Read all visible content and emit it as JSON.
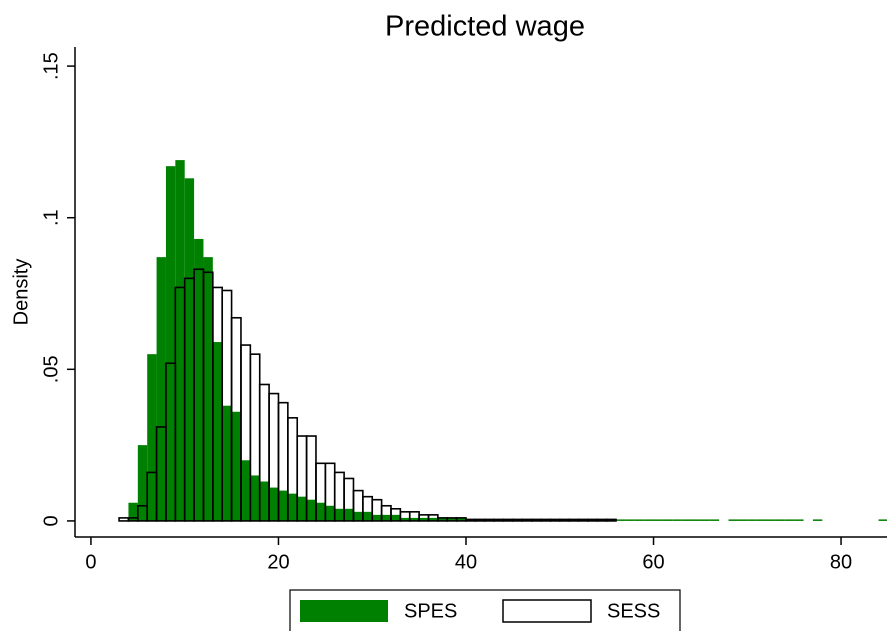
{
  "chart_data": {
    "type": "histogram",
    "title": "Predicted wage",
    "ylabel": "Density",
    "xlim": [
      -1.7,
      84.9
    ],
    "xticks": [
      0,
      20,
      40,
      60,
      80
    ],
    "ylim": [
      -0.0053,
      0.1563
    ],
    "yticks": [
      0,
      {
        "value": 0.05,
        "label": ".05"
      },
      {
        "value": 0.1,
        "label": ".1"
      },
      {
        "value": 0.15,
        "label": ".15"
      }
    ],
    "legend": "bottom",
    "series": [
      {
        "name": "SPES",
        "color": "#008000",
        "fill": true,
        "bins": [
          3,
          4,
          5,
          6,
          7,
          8,
          9,
          10,
          11,
          12,
          13,
          14,
          15,
          16,
          17,
          18,
          19,
          20,
          21,
          22,
          23,
          24,
          25,
          26,
          27,
          28,
          29,
          30,
          31,
          32,
          33,
          34,
          35,
          36,
          37,
          38,
          39,
          40,
          41,
          42,
          43,
          44,
          45,
          46,
          47,
          48,
          49,
          50,
          51,
          52,
          53,
          54,
          55,
          56,
          57,
          58,
          59,
          60,
          61,
          62,
          63,
          64,
          65,
          66,
          67,
          68,
          69,
          70,
          71,
          72,
          73,
          74,
          75,
          76,
          77,
          78,
          79,
          80,
          81,
          82,
          83,
          84,
          85
        ],
        "values": [
          0,
          0.006,
          0.025,
          0.055,
          0.087,
          0.117,
          0.119,
          0.113,
          0.093,
          0.087,
          0.059,
          0.038,
          0.036,
          0.02,
          0.015,
          0.013,
          0.011,
          0.01,
          0.009,
          0.008,
          0.007,
          0.006,
          0.005,
          0.004,
          0.004,
          0.003,
          0.003,
          0.002,
          0.002,
          0.002,
          0.001,
          0.001,
          0.001,
          0.001,
          0.001,
          0.001,
          0.001,
          0.0005,
          0.0005,
          0.0005,
          0.0005,
          0.0005,
          0.0005,
          0.0005,
          0.0005,
          0.0005,
          0.0005,
          0.0005,
          0.0005,
          0.0005,
          0.0005,
          0.0005,
          0.0005,
          0.0005,
          0.0005,
          0.0005,
          0.0005,
          0.0005,
          0.0005,
          0.0005,
          0.0005,
          0.0005,
          0.0005,
          0.0005,
          0,
          0.0005,
          0.0005,
          0.0005,
          0.0005,
          0.0005,
          0.0005,
          0.0005,
          0.0005,
          0,
          0.0005,
          0,
          0,
          0,
          0,
          0,
          0,
          0.0005
        ]
      },
      {
        "name": "SESS",
        "color": "#000000",
        "fill": false,
        "bins": [
          3,
          4,
          5,
          6,
          7,
          8,
          9,
          10,
          11,
          12,
          13,
          14,
          15,
          16,
          17,
          18,
          19,
          20,
          21,
          22,
          23,
          24,
          25,
          26,
          27,
          28,
          29,
          30,
          31,
          32,
          33,
          34,
          35,
          36,
          37,
          38,
          39,
          40,
          41,
          42,
          43,
          44,
          45,
          46,
          47,
          48,
          49,
          50,
          51,
          52,
          53,
          54,
          55,
          56
        ],
        "values": [
          0.001,
          0.001,
          0.005,
          0.016,
          0.031,
          0.052,
          0.077,
          0.08,
          0.083,
          0.082,
          0.077,
          0.076,
          0.067,
          0.058,
          0.055,
          0.045,
          0.042,
          0.039,
          0.034,
          0.028,
          0.028,
          0.019,
          0.019,
          0.016,
          0.014,
          0.01,
          0.008,
          0.007,
          0.005,
          0.004,
          0.003,
          0.003,
          0.002,
          0.002,
          0.001,
          0.001,
          0.001,
          0.0005,
          0.0005,
          0.0005,
          0.0005,
          0.0005,
          0.0005,
          0.0005,
          0.0005,
          0.0005,
          0.0005,
          0.0005,
          0.0005,
          0.0005,
          0.0005,
          0.0005,
          0.0005
        ]
      }
    ]
  }
}
